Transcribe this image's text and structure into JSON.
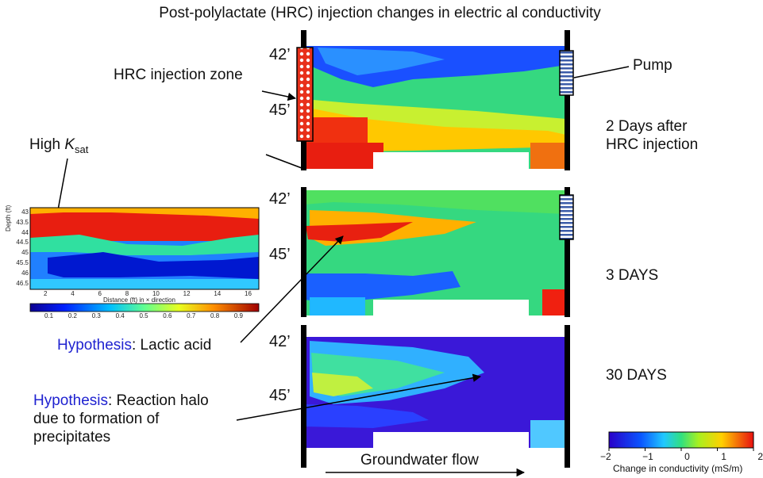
{
  "title": "Post-polylactate (HRC) injection changes in electric al conductivity",
  "labels": {
    "injection_zone": "HRC injection zone",
    "pump": "Pump",
    "high_k": "High ",
    "high_k_italic": "K",
    "high_k_sub": "sat",
    "groundwater_flow": "Groundwater flow",
    "hypothesis_word": "Hypothesis",
    "hyp1_text": ": Lactic acid",
    "hyp2_line1": ": Reaction halo",
    "hyp2_line2": "due to formation of",
    "hyp2_line3": "precipitates"
  },
  "panels": [
    {
      "caption_line1": "2 Days after",
      "caption_line2": "HRC injection",
      "depth_top": "42’",
      "depth_mid": "45’"
    },
    {
      "caption_line1": "3 DAYS",
      "caption_line2": "",
      "depth_top": "42’",
      "depth_mid": "45’"
    },
    {
      "caption_line1": "30 DAYS",
      "caption_line2": "",
      "depth_top": "42’",
      "depth_mid": "45’"
    }
  ],
  "ksat_plot": {
    "ylabel": "Depth (ft)",
    "xlabel": "Distance (ft) in × direction",
    "yticks": [
      "43",
      "43.5",
      "44",
      "44.5",
      "45",
      "45.5",
      "46",
      "46.5"
    ],
    "xticks": [
      "2",
      "4",
      "6",
      "8",
      "10",
      "12",
      "14",
      "16"
    ],
    "colorbar_ticks": [
      "0.1",
      "0.2",
      "0.3",
      "0.4",
      "0.5",
      "0.6",
      "0.7",
      "0.8",
      "0.9"
    ]
  },
  "conductivity_colorbar": {
    "ticks": [
      "−2",
      "−1",
      "0",
      "1",
      "2"
    ],
    "label": "Change in conductivity (mS/m)"
  }
}
